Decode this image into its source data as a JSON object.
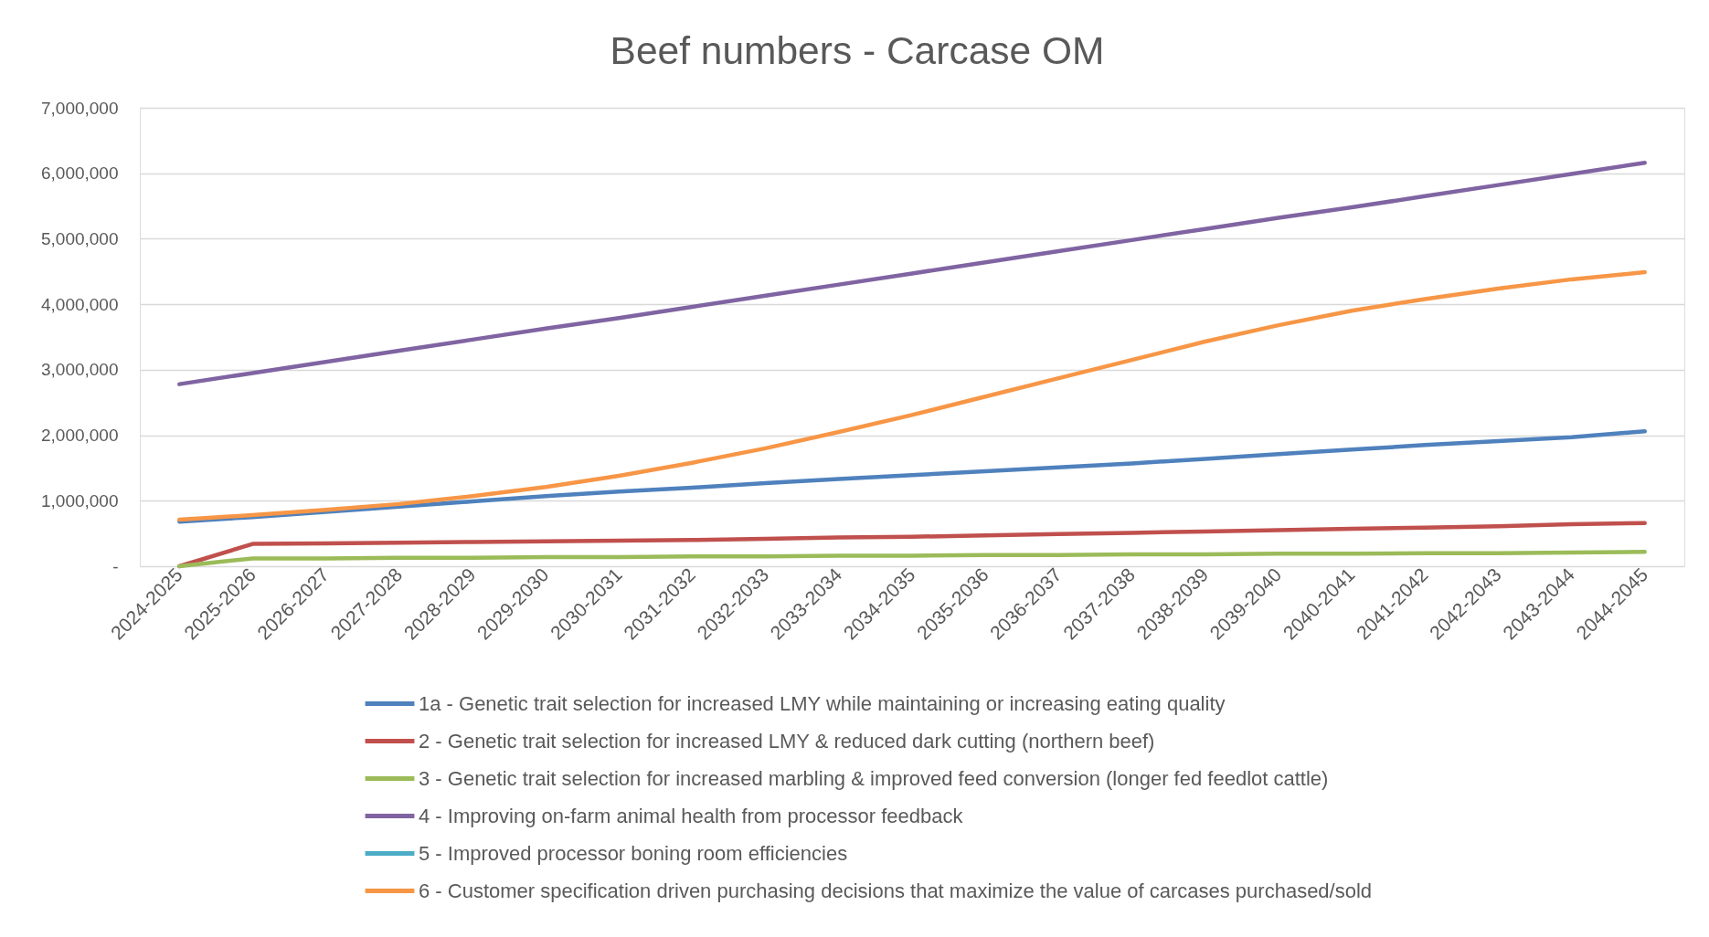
{
  "chart_data": {
    "type": "line",
    "title": "Beef numbers - Carcase OM",
    "categories": [
      "2024-2025",
      "2025-2026",
      "2026-2027",
      "2027-2028",
      "2028-2029",
      "2029-2030",
      "2030-2031",
      "2031-2032",
      "2032-2033",
      "2033-2034",
      "2034-2035",
      "2035-2036",
      "2036-2037",
      "2037-2038",
      "2038-2039",
      "2039-2040",
      "2040-2041",
      "2041-2042",
      "2042-2043",
      "2043-2044",
      "2044-2045"
    ],
    "series": [
      {
        "name": "1a - Genetic trait selection for increased LMY while maintaining or increasing eating quality",
        "color": "#4f81bd",
        "values": [
          680000,
          750000,
          830000,
          910000,
          990000,
          1070000,
          1140000,
          1200000,
          1270000,
          1330000,
          1390000,
          1450000,
          1510000,
          1570000,
          1640000,
          1710000,
          1780000,
          1850000,
          1910000,
          1970000,
          2060000
        ]
      },
      {
        "name": "2 - Genetic trait selection for increased LMY & reduced dark cutting (northern beef)",
        "color": "#c0504d",
        "values": [
          0,
          340000,
          350000,
          360000,
          370000,
          380000,
          390000,
          400000,
          420000,
          440000,
          450000,
          470000,
          490000,
          510000,
          530000,
          550000,
          570000,
          590000,
          610000,
          640000,
          660000
        ]
      },
      {
        "name": "3 - Genetic trait selection for increased marbling & improved feed conversion (longer fed feedlot cattle)",
        "color": "#9bbb59",
        "values": [
          0,
          120000,
          120000,
          130000,
          130000,
          140000,
          140000,
          150000,
          150000,
          160000,
          160000,
          170000,
          170000,
          180000,
          180000,
          190000,
          190000,
          200000,
          200000,
          210000,
          220000
        ]
      },
      {
        "name": "4 - Improving on-farm animal health from processor feedback",
        "color": "#8064a2",
        "values": [
          2780000,
          2950000,
          3120000,
          3290000,
          3460000,
          3630000,
          3790000,
          3960000,
          4130000,
          4300000,
          4470000,
          4640000,
          4810000,
          4980000,
          5150000,
          5320000,
          5480000,
          5650000,
          5820000,
          5990000,
          6160000
        ]
      },
      {
        "name": "5 - Improved processor boning room efficiencies",
        "color": "#4bacc6",
        "values": [
          null,
          null,
          null,
          null,
          null,
          null,
          null,
          null,
          null,
          null,
          null,
          null,
          null,
          null,
          null,
          null,
          null,
          null,
          null,
          null,
          null
        ]
      },
      {
        "name": "6 - Customer specification driven purchasing decisions that maximize the value of carcases purchased/sold",
        "color": "#f79646",
        "values": [
          710000,
          780000,
          860000,
          950000,
          1070000,
          1210000,
          1380000,
          1580000,
          1800000,
          2050000,
          2310000,
          2590000,
          2870000,
          3150000,
          3430000,
          3680000,
          3900000,
          4080000,
          4240000,
          4380000,
          4490000
        ]
      }
    ],
    "ylim": [
      0,
      7000000
    ],
    "yticks": [
      {
        "value": 0,
        "label": "-"
      },
      {
        "value": 1000000,
        "label": "1,000,000"
      },
      {
        "value": 2000000,
        "label": "2,000,000"
      },
      {
        "value": 3000000,
        "label": "3,000,000"
      },
      {
        "value": 4000000,
        "label": "4,000,000"
      },
      {
        "value": 5000000,
        "label": "5,000,000"
      },
      {
        "value": 6000000,
        "label": "6,000,000"
      },
      {
        "value": 7000000,
        "label": "7,000,000"
      }
    ],
    "grid": "y",
    "legend": "bottom",
    "line_style": "solid"
  }
}
